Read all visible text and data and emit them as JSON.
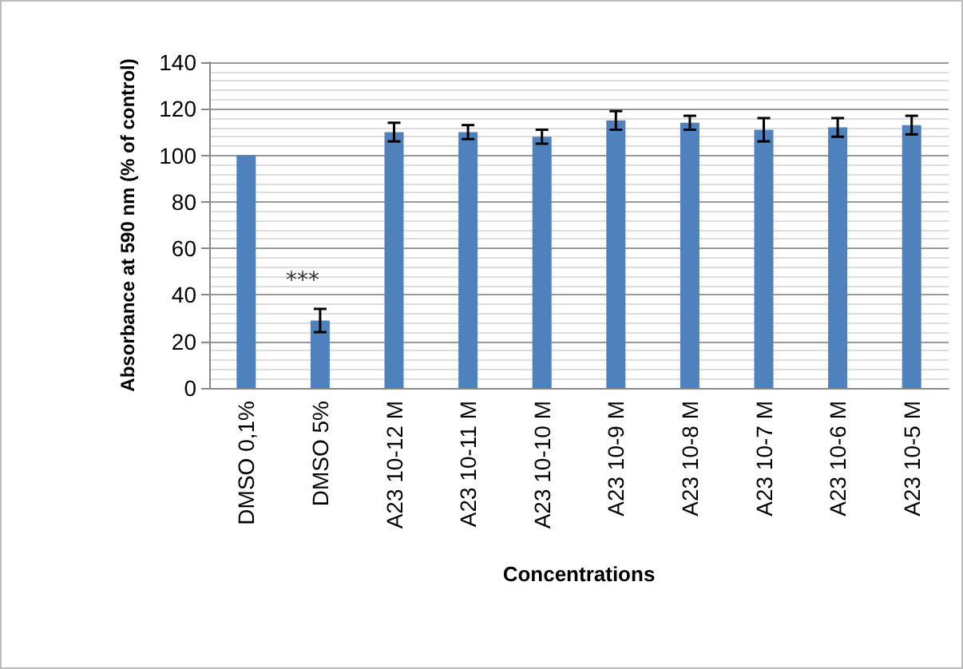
{
  "chart_data": {
    "type": "bar",
    "xlabel": "Concentrations",
    "ylabel": "Absorbance at 590 nm (% of control)",
    "categories": [
      "DMSO 0,1%",
      "DMSO 5%",
      "A23 10-12 M",
      "A23 10-11 M",
      "A23 10-10 M",
      "A23 10-9 M",
      "A23 10-8 M",
      "A23 10-7 M",
      "A23 10-6 M",
      "A23 10-5 M"
    ],
    "values": [
      100,
      29,
      110,
      110,
      108,
      115,
      114,
      111,
      112,
      113
    ],
    "errors": [
      null,
      5,
      4,
      3,
      3,
      4,
      3,
      5,
      4,
      4
    ],
    "color": "#4f81bd",
    "ylim": [
      0,
      140
    ],
    "yticks": [
      0,
      20,
      40,
      60,
      80,
      100,
      120,
      140
    ],
    "grid": "y",
    "annotations": [
      "***"
    ]
  }
}
